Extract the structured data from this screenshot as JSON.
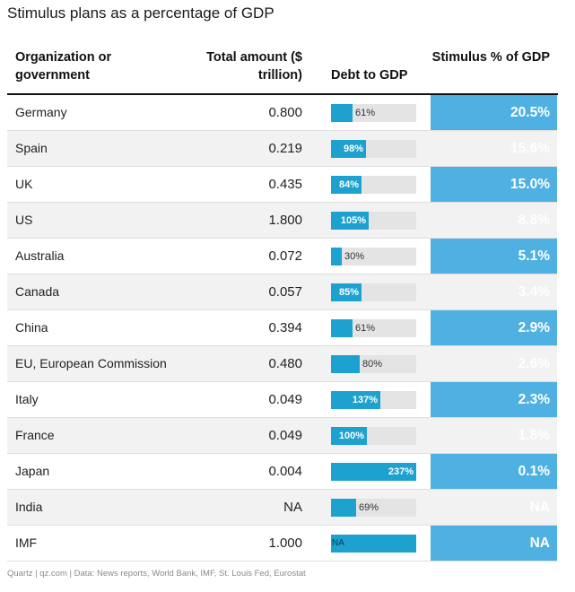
{
  "title": "Stimulus plans as a percentage of GDP",
  "headers": {
    "org": "Organization or government",
    "total": "Total amount ($ trillion)",
    "debt": "Debt to GDP",
    "stim": "Stimulus % of GDP"
  },
  "source": "Quartz | qz.com | Data: News reports, World Bank, IMF, St. Louis Fed, Eurostat",
  "colors": {
    "stimulus_column": "#4fb1e2",
    "debt_bar": "#1da1cf",
    "bar_track": "#e4e4e4",
    "row_alt": "#f2f2f2"
  },
  "chart_data": {
    "type": "table",
    "debt_bar_max": 237,
    "rows": [
      {
        "org": "Germany",
        "total": "0.800",
        "debt": 61,
        "debt_label": "61%",
        "stim": "20.5%"
      },
      {
        "org": "Spain",
        "total": "0.219",
        "debt": 98,
        "debt_label": "98%",
        "stim": "15.6%"
      },
      {
        "org": "UK",
        "total": "0.435",
        "debt": 84,
        "debt_label": "84%",
        "stim": "15.0%"
      },
      {
        "org": "US",
        "total": "1.800",
        "debt": 105,
        "debt_label": "105%",
        "stim": "8.8%"
      },
      {
        "org": "Australia",
        "total": "0.072",
        "debt": 30,
        "debt_label": "30%",
        "stim": "5.1%"
      },
      {
        "org": "Canada",
        "total": "0.057",
        "debt": 85,
        "debt_label": "85%",
        "stim": "3.4%"
      },
      {
        "org": "China",
        "total": "0.394",
        "debt": 61,
        "debt_label": "61%",
        "stim": "2.9%"
      },
      {
        "org": "EU, European Commission",
        "total": "0.480",
        "debt": 80,
        "debt_label": "80%",
        "stim": "2.6%"
      },
      {
        "org": "Italy",
        "total": "0.049",
        "debt": 137,
        "debt_label": "137%",
        "stim": "2.3%"
      },
      {
        "org": "France",
        "total": "0.049",
        "debt": 100,
        "debt_label": "100%",
        "stim": "1.8%"
      },
      {
        "org": "Japan",
        "total": "0.004",
        "debt": 237,
        "debt_label": "237%",
        "stim": "0.1%"
      },
      {
        "org": "India",
        "total": "NA",
        "debt": 69,
        "debt_label": "69%",
        "stim": "NA"
      },
      {
        "org": "IMF",
        "total": "1.000",
        "debt": null,
        "debt_label": "NA",
        "stim": "NA"
      }
    ]
  }
}
